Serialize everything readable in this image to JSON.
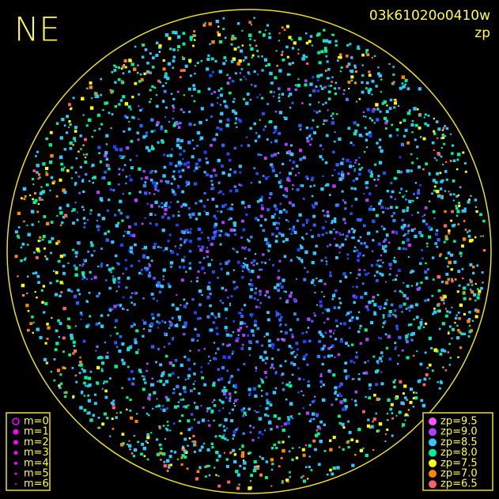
{
  "corner_label": "NE",
  "image_id": "03k61020o0410w",
  "mode": "zp",
  "magnitude_legend": {
    "color": "#ff00ff",
    "items": [
      {
        "label": "m=0"
      },
      {
        "label": "m=1"
      },
      {
        "label": "m=2"
      },
      {
        "label": "m=3"
      },
      {
        "label": "m=4"
      },
      {
        "label": "m=5"
      },
      {
        "label": "m=6"
      }
    ]
  },
  "zp_legend": {
    "items": [
      {
        "label": "zp=9.5",
        "color": "#ff55ff"
      },
      {
        "label": "zp=9.0",
        "color": "#b040ff"
      },
      {
        "label": "zp=8.5",
        "color": "#30c8ff"
      },
      {
        "label": "zp=8.0",
        "color": "#00f0a0"
      },
      {
        "label": "zp=7.5",
        "color": "#ffff00"
      },
      {
        "label": "zp=7.0",
        "color": "#ff8800"
      },
      {
        "label": "zp=6.5",
        "color": "#ff6070"
      }
    ]
  }
}
